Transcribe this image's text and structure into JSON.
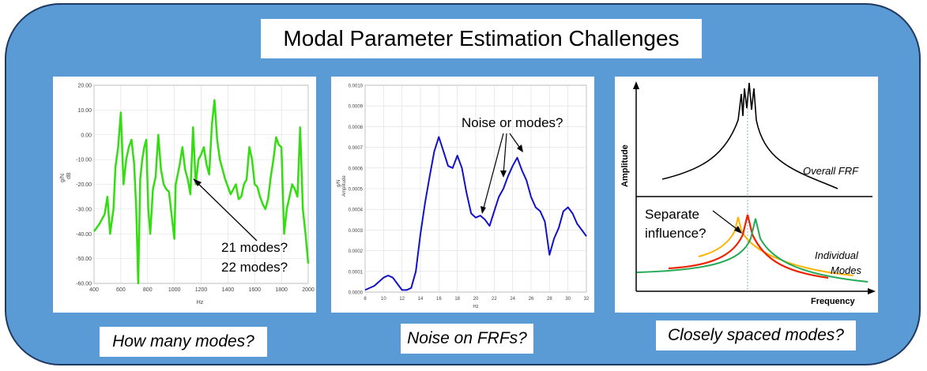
{
  "title": "Modal Parameter Estimation Challenges",
  "panels": {
    "modes_count": {
      "caption": "How many modes?",
      "annotation_1": "21 modes?",
      "annotation_2": "22 modes?",
      "y_unit_1": "g/N",
      "y_unit_2": "dB",
      "x_unit": "Hz",
      "line_color": "#33dd11",
      "chart_data": {
        "type": "line",
        "xlim": [
          400,
          2000
        ],
        "ylim": [
          -60,
          20
        ],
        "x_ticks": [
          "400",
          "600",
          "800",
          "1000",
          "1200",
          "1400",
          "1600",
          "1800",
          "2000"
        ],
        "y_ticks": [
          "20.00",
          "10.00",
          "0.00",
          "-10.00",
          "-20.00",
          "-30.00",
          "-40.00",
          "-50.00",
          "-60.00"
        ],
        "x": [
          400,
          440,
          480,
          500,
          520,
          545,
          560,
          580,
          600,
          620,
          640,
          660,
          680,
          700,
          715,
          730,
          745,
          760,
          775,
          790,
          805,
          820,
          840,
          860,
          880,
          900,
          920,
          940,
          960,
          985,
          1000,
          1010,
          1025,
          1040,
          1060,
          1080,
          1100,
          1120,
          1140,
          1160,
          1180,
          1200,
          1220,
          1240,
          1260,
          1280,
          1300,
          1320,
          1340,
          1360,
          1380,
          1400,
          1420,
          1440,
          1460,
          1480,
          1500,
          1520,
          1540,
          1560,
          1580,
          1600,
          1620,
          1640,
          1660,
          1680,
          1700,
          1720,
          1740,
          1760,
          1780,
          1800,
          1820,
          1840,
          1860,
          1880,
          1900,
          1920,
          1940,
          1960,
          1980,
          2000
        ],
        "y": [
          -39,
          -36,
          -32,
          -25,
          -40,
          -30,
          -13,
          -5,
          9,
          -20,
          -10,
          -5,
          -2,
          -12,
          -30,
          -60,
          -18,
          -10,
          -5,
          -2,
          -30,
          -40,
          -22,
          -17,
          0,
          -14,
          -20,
          -22,
          -23,
          -35,
          -42,
          -20,
          -16,
          -12,
          -5,
          -14,
          -18,
          -24,
          3,
          -20,
          -10,
          -8,
          -5,
          -12,
          -16,
          4,
          14,
          -2,
          -10,
          -14,
          -18,
          -21,
          -24,
          -22,
          -20,
          -26,
          -25,
          -20,
          -18,
          -5,
          -10,
          -20,
          -21,
          -25,
          -28,
          -30,
          -26,
          -17,
          -10,
          -1,
          -4,
          -5,
          -40,
          -30,
          -25,
          -20,
          -22,
          -25,
          3,
          -30,
          -40,
          -52
        ]
      }
    },
    "noise": {
      "caption": "Noise on FRFs?",
      "annotation": "Noise or modes?",
      "y_unit_1": "g/N",
      "y_unit_2": "Amplitude",
      "x_unit": "Hz",
      "line_color": "#1111cc",
      "chart_data": {
        "type": "line",
        "xlim": [
          8,
          32
        ],
        "ylim": [
          0,
          0.001
        ],
        "x_ticks": [
          "8",
          "10",
          "12",
          "14",
          "16",
          "18",
          "20",
          "22",
          "24",
          "26",
          "28",
          "30",
          "32"
        ],
        "y_ticks": [
          "0.0010",
          "0.0009",
          "0.0008",
          "0.0007",
          "0.0006",
          "0.0005",
          "0.0004",
          "0.0003",
          "0.0002",
          "0.0001",
          "0.0000"
        ],
        "x": [
          8,
          9,
          10,
          10.5,
          11,
          11.5,
          12,
          12.5,
          13,
          13.5,
          14,
          14.5,
          15,
          15.5,
          16,
          16.5,
          17,
          17.5,
          18,
          18.5,
          19,
          19.5,
          20,
          20.5,
          21,
          21.5,
          22,
          22.5,
          23,
          23.5,
          24,
          24.5,
          25,
          25.5,
          26,
          26.5,
          27,
          27.5,
          28,
          28.5,
          29,
          29.5,
          30,
          30.5,
          31,
          31.5,
          32
        ],
        "y": [
          1e-05,
          3e-05,
          7e-05,
          8e-05,
          7e-05,
          4e-05,
          1e-05,
          1e-05,
          2e-05,
          0.0001,
          0.00028,
          0.00043,
          0.00056,
          0.00068,
          0.00075,
          0.00068,
          0.00061,
          0.0006,
          0.00066,
          0.0006,
          0.00048,
          0.00038,
          0.00036,
          0.00037,
          0.00035,
          0.00032,
          0.00039,
          0.00046,
          0.0005,
          0.00056,
          0.00061,
          0.00065,
          0.00059,
          0.00054,
          0.00046,
          0.00041,
          0.00039,
          0.00034,
          0.00018,
          0.00026,
          0.00031,
          0.00039,
          0.00041,
          0.00038,
          0.00033,
          0.0003,
          0.00027
        ]
      }
    },
    "closely_spaced": {
      "caption": "Closely spaced modes?",
      "y_axis_label": "Amplitude",
      "x_axis_label": "Frequency",
      "overall_label": "Overall FRF",
      "separate_label_1": "Separate",
      "separate_label_2": "influence?",
      "individual_label_1": "Individual",
      "individual_label_2": "Modes",
      "colors": {
        "mode_1": "#ffb300",
        "mode_2": "#ee2200",
        "mode_3": "#22aa55"
      }
    }
  }
}
